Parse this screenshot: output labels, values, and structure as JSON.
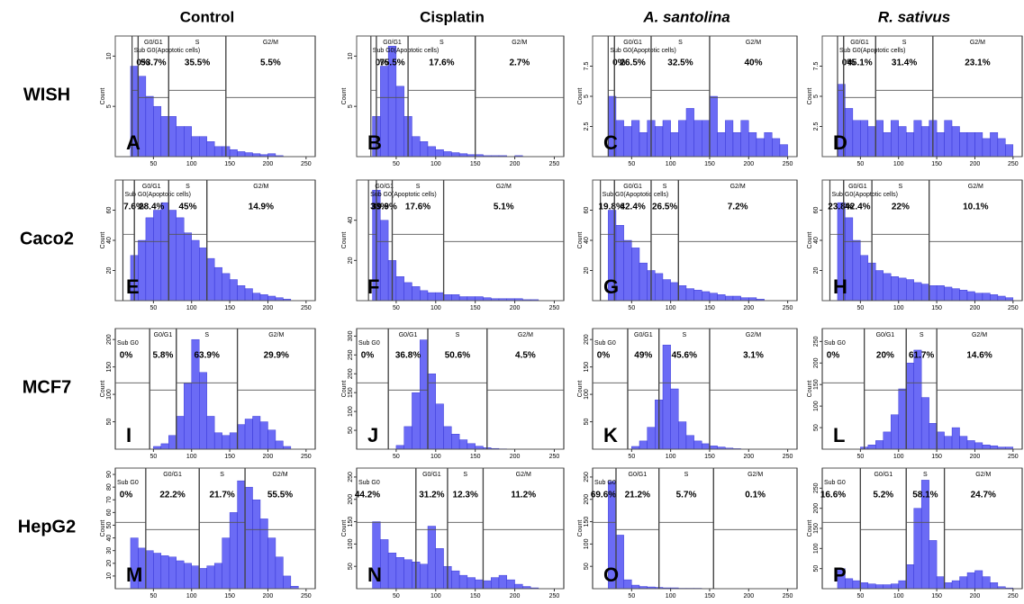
{
  "column_headers": [
    "Control",
    "Cisplatin",
    "A. santolina",
    "R. sativus"
  ],
  "column_header_italic": [
    false,
    false,
    true,
    true
  ],
  "row_labels": [
    "WISH",
    "Caco2",
    "MCF7",
    "HepG2"
  ],
  "y_axis_label": "Count",
  "histogram_bins": [
    0,
    10,
    20,
    30,
    40,
    50,
    60,
    70,
    80,
    90,
    100,
    110,
    120,
    130,
    140,
    150,
    160,
    170,
    180,
    190,
    200,
    210,
    220,
    230,
    240,
    250
  ],
  "xlim": [
    0,
    262
  ],
  "xticks": [
    50,
    100,
    150,
    200,
    250
  ],
  "panels": [
    {
      "letter": "A",
      "ylim": [
        0,
        12
      ],
      "yticks": [
        5,
        10
      ],
      "counts": [
        0,
        0,
        9,
        8,
        6,
        5,
        4,
        4,
        3,
        3,
        2,
        2,
        1.5,
        1,
        1,
        0.7,
        0.5,
        0.4,
        0.3,
        0.2,
        0.3,
        0.1,
        0,
        0,
        0
      ],
      "gates": [
        {
          "name": "Sub G0(Apoptotic cells)",
          "percent": "0%",
          "range": [
            22,
            30
          ]
        },
        {
          "name": "G0/G1",
          "percent": "53.7%",
          "range": [
            30,
            70
          ]
        },
        {
          "name": "S",
          "percent": "35.5%",
          "range": [
            70,
            145
          ]
        },
        {
          "name": "G2/M",
          "percent": "5.5%",
          "range": [
            145,
            262
          ]
        }
      ]
    },
    {
      "letter": "B",
      "ylim": [
        0,
        12
      ],
      "yticks": [
        5,
        10
      ],
      "counts": [
        0,
        0,
        4,
        9,
        11,
        7,
        4,
        2,
        1.5,
        1,
        0.7,
        0.5,
        0.4,
        0.3,
        0.2,
        0.2,
        0.1,
        0.1,
        0.1,
        0,
        0.1,
        0,
        0,
        0,
        0
      ],
      "gates": [
        {
          "name": "Sub G0(Apoptotic cells)",
          "percent": "0%",
          "range": [
            18,
            25
          ]
        },
        {
          "name": "G0/G1",
          "percent": "75.5%",
          "range": [
            25,
            65
          ]
        },
        {
          "name": "S",
          "percent": "17.6%",
          "range": [
            65,
            150
          ]
        },
        {
          "name": "G2/M",
          "percent": "2.7%",
          "range": [
            150,
            262
          ]
        }
      ]
    },
    {
      "letter": "C",
      "ylim": [
        0,
        10
      ],
      "yticks": [
        2.5,
        5,
        7.5
      ],
      "counts": [
        0,
        0,
        5,
        3,
        2.5,
        3,
        2,
        3,
        2.5,
        3,
        2,
        3,
        4,
        3,
        3,
        5,
        2,
        3,
        2,
        3,
        2,
        1.5,
        2,
        1.5,
        1
      ],
      "gates": [
        {
          "name": "Sub G0(Apoptotic cells)",
          "percent": "0%",
          "range": [
            20,
            28
          ]
        },
        {
          "name": "G0/G1",
          "percent": "26.5%",
          "range": [
            28,
            75
          ]
        },
        {
          "name": "S",
          "percent": "32.5%",
          "range": [
            75,
            150
          ]
        },
        {
          "name": "G2/M",
          "percent": "40%",
          "range": [
            150,
            262
          ]
        }
      ]
    },
    {
      "letter": "D",
      "ylim": [
        0,
        10
      ],
      "yticks": [
        2.5,
        5,
        7.5
      ],
      "counts": [
        0,
        0,
        6,
        4,
        3,
        3,
        2.5,
        3,
        2,
        3,
        2.5,
        2,
        3,
        2.5,
        3,
        2,
        3,
        2.5,
        2,
        2,
        2,
        1.5,
        2,
        1.5,
        1
      ],
      "gates": [
        {
          "name": "Sub G0(Apoptotic cells)",
          "percent": "0%",
          "range": [
            20,
            28
          ]
        },
        {
          "name": "G0/G1",
          "percent": "45.1%",
          "range": [
            28,
            70
          ]
        },
        {
          "name": "S",
          "percent": "31.4%",
          "range": [
            70,
            145
          ]
        },
        {
          "name": "G2/M",
          "percent": "23.1%",
          "range": [
            145,
            262
          ]
        }
      ]
    },
    {
      "letter": "E",
      "ylim": [
        0,
        80
      ],
      "yticks": [
        20,
        40,
        60
      ],
      "counts": [
        0,
        0,
        30,
        40,
        55,
        60,
        65,
        60,
        55,
        45,
        40,
        35,
        28,
        22,
        18,
        14,
        10,
        8,
        5,
        4,
        3,
        2,
        1,
        0,
        0
      ],
      "gates": [
        {
          "name": "Sub G0(Apoptotic cells)",
          "percent": "7.6%",
          "range": [
            10,
            25
          ]
        },
        {
          "name": "G0/G1",
          "percent": "28.4%",
          "range": [
            25,
            70
          ]
        },
        {
          "name": "S",
          "percent": "45%",
          "range": [
            70,
            120
          ]
        },
        {
          "name": "G2/M",
          "percent": "14.9%",
          "range": [
            120,
            262
          ]
        }
      ]
    },
    {
      "letter": "F",
      "ylim": [
        0,
        60
      ],
      "yticks": [
        20,
        40
      ],
      "counts": [
        0,
        0,
        55,
        40,
        20,
        12,
        9,
        7,
        5,
        4,
        4,
        3,
        3,
        2,
        2,
        2,
        1.5,
        1,
        1,
        1,
        1,
        0.5,
        0.5,
        0,
        0
      ],
      "gates": [
        {
          "name": "Sub G0(Apoptotic cells)",
          "percent": "33%",
          "range": [
            15,
            25
          ]
        },
        {
          "name": "G0/G1",
          "percent": "39.9%",
          "range": [
            25,
            45
          ]
        },
        {
          "name": "S",
          "percent": "17.6%",
          "range": [
            45,
            110
          ]
        },
        {
          "name": "G2/M",
          "percent": "5.1%",
          "range": [
            110,
            262
          ]
        }
      ]
    },
    {
      "letter": "G",
      "ylim": [
        0,
        80
      ],
      "yticks": [
        20,
        40,
        60
      ],
      "counts": [
        0,
        0,
        60,
        50,
        40,
        35,
        25,
        20,
        18,
        14,
        12,
        10,
        8,
        7,
        6,
        5,
        4,
        3,
        3,
        2,
        2,
        1,
        0,
        0,
        0
      ],
      "gates": [
        {
          "name": "Sub G0(Apoptotic cells)",
          "percent": "19.8%",
          "range": [
            10,
            28
          ]
        },
        {
          "name": "G0/G1",
          "percent": "42.4%",
          "range": [
            28,
            75
          ]
        },
        {
          "name": "S",
          "percent": "26.5%",
          "range": [
            75,
            110
          ]
        },
        {
          "name": "G2/M",
          "percent": "7.2%",
          "range": [
            110,
            262
          ]
        }
      ]
    },
    {
      "letter": "H",
      "ylim": [
        0,
        80
      ],
      "yticks": [
        20,
        40,
        60
      ],
      "counts": [
        0,
        0,
        65,
        55,
        40,
        30,
        25,
        20,
        18,
        16,
        15,
        14,
        12,
        11,
        10,
        10,
        9,
        8,
        7,
        6,
        5,
        5,
        4,
        3,
        2
      ],
      "gates": [
        {
          "name": "Sub G0(Apoptotic cells)",
          "percent": "23.8%",
          "range": [
            10,
            28
          ]
        },
        {
          "name": "G0/G1",
          "percent": "42.4%",
          "range": [
            28,
            65
          ]
        },
        {
          "name": "S",
          "percent": "22%",
          "range": [
            65,
            140
          ]
        },
        {
          "name": "G2/M",
          "percent": "10.1%",
          "range": [
            140,
            262
          ]
        }
      ]
    },
    {
      "letter": "I",
      "ylim": [
        0,
        220
      ],
      "yticks": [
        50,
        100,
        150,
        200
      ],
      "counts": [
        0,
        0,
        0,
        0,
        0,
        5,
        10,
        25,
        60,
        120,
        200,
        140,
        60,
        30,
        25,
        30,
        45,
        55,
        60,
        50,
        35,
        15,
        5,
        0,
        0
      ],
      "gates": [
        {
          "name": "Sub G0",
          "percent": "0%",
          "range": [
            0,
            45
          ]
        },
        {
          "name": "G0/G1",
          "percent": "5.8%",
          "range": [
            45,
            80
          ]
        },
        {
          "name": "S",
          "percent": "63.9%",
          "range": [
            80,
            160
          ]
        },
        {
          "name": "G2/M",
          "percent": "29.9%",
          "range": [
            160,
            262
          ]
        }
      ]
    },
    {
      "letter": "J",
      "ylim": [
        0,
        320
      ],
      "yticks": [
        50,
        100,
        150,
        200,
        250,
        300
      ],
      "counts": [
        0,
        0,
        0,
        0,
        0,
        10,
        60,
        150,
        290,
        200,
        120,
        60,
        40,
        25,
        15,
        8,
        4,
        2,
        1,
        0,
        0,
        0,
        0,
        0,
        0
      ],
      "gates": [
        {
          "name": "Sub G0",
          "percent": "0%",
          "range": [
            0,
            40
          ]
        },
        {
          "name": "G0/G1",
          "percent": "36.8%",
          "range": [
            40,
            90
          ]
        },
        {
          "name": "S",
          "percent": "50.6%",
          "range": [
            90,
            165
          ]
        },
        {
          "name": "G2/M",
          "percent": "4.5%",
          "range": [
            165,
            262
          ]
        }
      ]
    },
    {
      "letter": "K",
      "ylim": [
        0,
        220
      ],
      "yticks": [
        50,
        100,
        150,
        200
      ],
      "counts": [
        0,
        0,
        0,
        0,
        0,
        5,
        15,
        40,
        90,
        190,
        110,
        50,
        25,
        15,
        10,
        6,
        4,
        2,
        1,
        0,
        0,
        0,
        0,
        0,
        0
      ],
      "gates": [
        {
          "name": "Sub G0",
          "percent": "0%",
          "range": [
            0,
            45
          ]
        },
        {
          "name": "G0/G1",
          "percent": "49%",
          "range": [
            45,
            85
          ]
        },
        {
          "name": "S",
          "percent": "45.6%",
          "range": [
            85,
            150
          ]
        },
        {
          "name": "G2/M",
          "percent": "3.1%",
          "range": [
            150,
            262
          ]
        }
      ]
    },
    {
      "letter": "L",
      "ylim": [
        0,
        280
      ],
      "yticks": [
        50,
        100,
        150,
        200,
        250
      ],
      "counts": [
        0,
        0,
        0,
        0,
        0,
        5,
        10,
        20,
        40,
        80,
        140,
        200,
        230,
        120,
        60,
        40,
        30,
        50,
        30,
        20,
        15,
        10,
        8,
        5,
        5
      ],
      "gates": [
        {
          "name": "Sub G0",
          "percent": "0%",
          "range": [
            0,
            55
          ]
        },
        {
          "name": "G0/G1",
          "percent": "20%",
          "range": [
            55,
            110
          ]
        },
        {
          "name": "S",
          "percent": "61.7%",
          "range": [
            110,
            150
          ]
        },
        {
          "name": "G2/M",
          "percent": "14.6%",
          "range": [
            150,
            262
          ]
        }
      ]
    },
    {
      "letter": "M",
      "ylim": [
        0,
        95
      ],
      "yticks": [
        10,
        20,
        30,
        40,
        50,
        60,
        70,
        80,
        90
      ],
      "counts": [
        0,
        0,
        40,
        32,
        30,
        28,
        26,
        25,
        22,
        20,
        18,
        16,
        18,
        20,
        40,
        60,
        85,
        80,
        70,
        55,
        40,
        25,
        10,
        2,
        0
      ],
      "gates": [
        {
          "name": "Sub G0",
          "percent": "0%",
          "range": [
            0,
            40
          ]
        },
        {
          "name": "G0/G1",
          "percent": "22.2%",
          "range": [
            40,
            110
          ]
        },
        {
          "name": "S",
          "percent": "21.7%",
          "range": [
            110,
            170
          ]
        },
        {
          "name": "G2/M",
          "percent": "55.5%",
          "range": [
            170,
            262
          ]
        }
      ]
    },
    {
      "letter": "N",
      "ylim": [
        0,
        270
      ],
      "yticks": [
        50,
        100,
        150,
        200,
        250
      ],
      "counts": [
        0,
        0,
        150,
        110,
        80,
        70,
        65,
        60,
        55,
        140,
        90,
        50,
        40,
        30,
        25,
        20,
        18,
        25,
        30,
        20,
        10,
        5,
        2,
        0,
        0
      ],
      "gates": [
        {
          "name": "Sub G0",
          "percent": "44.2%",
          "range": [
            0,
            75
          ]
        },
        {
          "name": "G0/G1",
          "percent": "31.2%",
          "range": [
            75,
            115
          ]
        },
        {
          "name": "S",
          "percent": "12.3%",
          "range": [
            115,
            160
          ]
        },
        {
          "name": "G2/M",
          "percent": "11.2%",
          "range": [
            160,
            262
          ]
        }
      ]
    },
    {
      "letter": "O",
      "ylim": [
        0,
        270
      ],
      "yticks": [
        50,
        100,
        150,
        200,
        250
      ],
      "counts": [
        0,
        0,
        240,
        120,
        20,
        8,
        5,
        4,
        3,
        2,
        2,
        1,
        1,
        1,
        0,
        0,
        0,
        0,
        0,
        0,
        0,
        0,
        0,
        0,
        0
      ],
      "gates": [
        {
          "name": "Sub G0",
          "percent": "69.6%",
          "range": [
            0,
            30
          ]
        },
        {
          "name": "G0/G1",
          "percent": "21.2%",
          "range": [
            30,
            85
          ]
        },
        {
          "name": "S",
          "percent": "5.7%",
          "range": [
            85,
            155
          ]
        },
        {
          "name": "G2/M",
          "percent": "0.1%",
          "range": [
            155,
            262
          ]
        }
      ]
    },
    {
      "letter": "P",
      "ylim": [
        0,
        300
      ],
      "yticks": [
        50,
        100,
        150,
        200,
        250
      ],
      "counts": [
        0,
        0,
        50,
        25,
        20,
        15,
        12,
        10,
        10,
        12,
        20,
        60,
        200,
        270,
        120,
        30,
        15,
        20,
        30,
        40,
        45,
        30,
        15,
        5,
        2
      ],
      "gates": [
        {
          "name": "Sub G0",
          "percent": "16.6%",
          "range": [
            0,
            50
          ]
        },
        {
          "name": "G0/G1",
          "percent": "5.2%",
          "range": [
            50,
            110
          ]
        },
        {
          "name": "S",
          "percent": "58.1%",
          "range": [
            110,
            160
          ]
        },
        {
          "name": "G2/M",
          "percent": "24.7%",
          "range": [
            160,
            262
          ]
        }
      ]
    }
  ]
}
